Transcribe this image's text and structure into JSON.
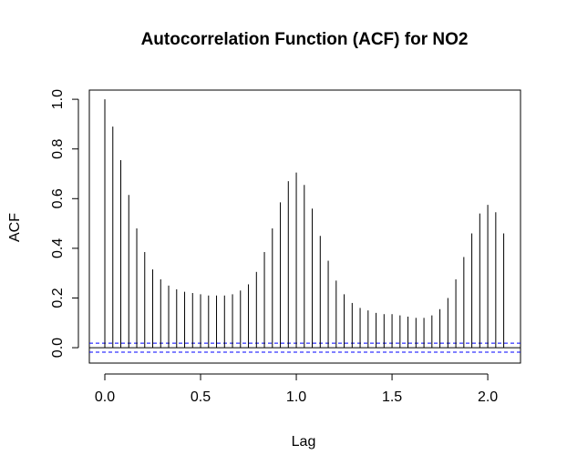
{
  "chart_data": {
    "type": "acf",
    "title": "Autocorrelation Function (ACF) for NO2",
    "x_label": "Lag",
    "y_label": "ACF",
    "x": [
      0,
      0.0417,
      0.0833,
      0.125,
      0.1667,
      0.2083,
      0.25,
      0.2917,
      0.3333,
      0.375,
      0.4167,
      0.4583,
      0.5,
      0.5417,
      0.5833,
      0.625,
      0.6667,
      0.7083,
      0.75,
      0.7917,
      0.8333,
      0.875,
      0.9167,
      0.9583,
      1,
      1.0417,
      1.0833,
      1.125,
      1.1667,
      1.2083,
      1.25,
      1.2917,
      1.3333,
      1.375,
      1.4167,
      1.4583,
      1.5,
      1.5417,
      1.5833,
      1.625,
      1.6667,
      1.7083,
      1.75,
      1.7917,
      1.8333,
      1.875,
      1.9167,
      1.9583,
      2,
      2.0417,
      2.0833
    ],
    "values": [
      1.0,
      0.89,
      0.755,
      0.615,
      0.48,
      0.385,
      0.315,
      0.275,
      0.25,
      0.235,
      0.225,
      0.22,
      0.215,
      0.21,
      0.21,
      0.21,
      0.215,
      0.23,
      0.255,
      0.305,
      0.385,
      0.48,
      0.585,
      0.67,
      0.705,
      0.655,
      0.56,
      0.45,
      0.35,
      0.27,
      0.215,
      0.18,
      0.16,
      0.15,
      0.14,
      0.135,
      0.135,
      0.13,
      0.125,
      0.12,
      0.12,
      0.13,
      0.155,
      0.2,
      0.275,
      0.365,
      0.46,
      0.54,
      0.575,
      0.545,
      0.46
    ],
    "color": "#000000",
    "ci": [
      -0.018,
      0.018
    ],
    "ci_color": "#0000ff",
    "xlim": [
      -0.081,
      2.171
    ],
    "ylim": [
      -0.062,
      1.037
    ],
    "xticks": [
      {
        "value": 0,
        "label": "0.0"
      },
      0.5,
      {
        "value": 1,
        "label": "1.0"
      },
      1.5,
      {
        "value": 2,
        "label": "2.0"
      }
    ],
    "yticks": [
      {
        "value": 0,
        "label": "0.0"
      },
      0.2,
      0.4,
      0.6,
      0.8,
      {
        "value": 1,
        "label": "1.0"
      }
    ]
  }
}
